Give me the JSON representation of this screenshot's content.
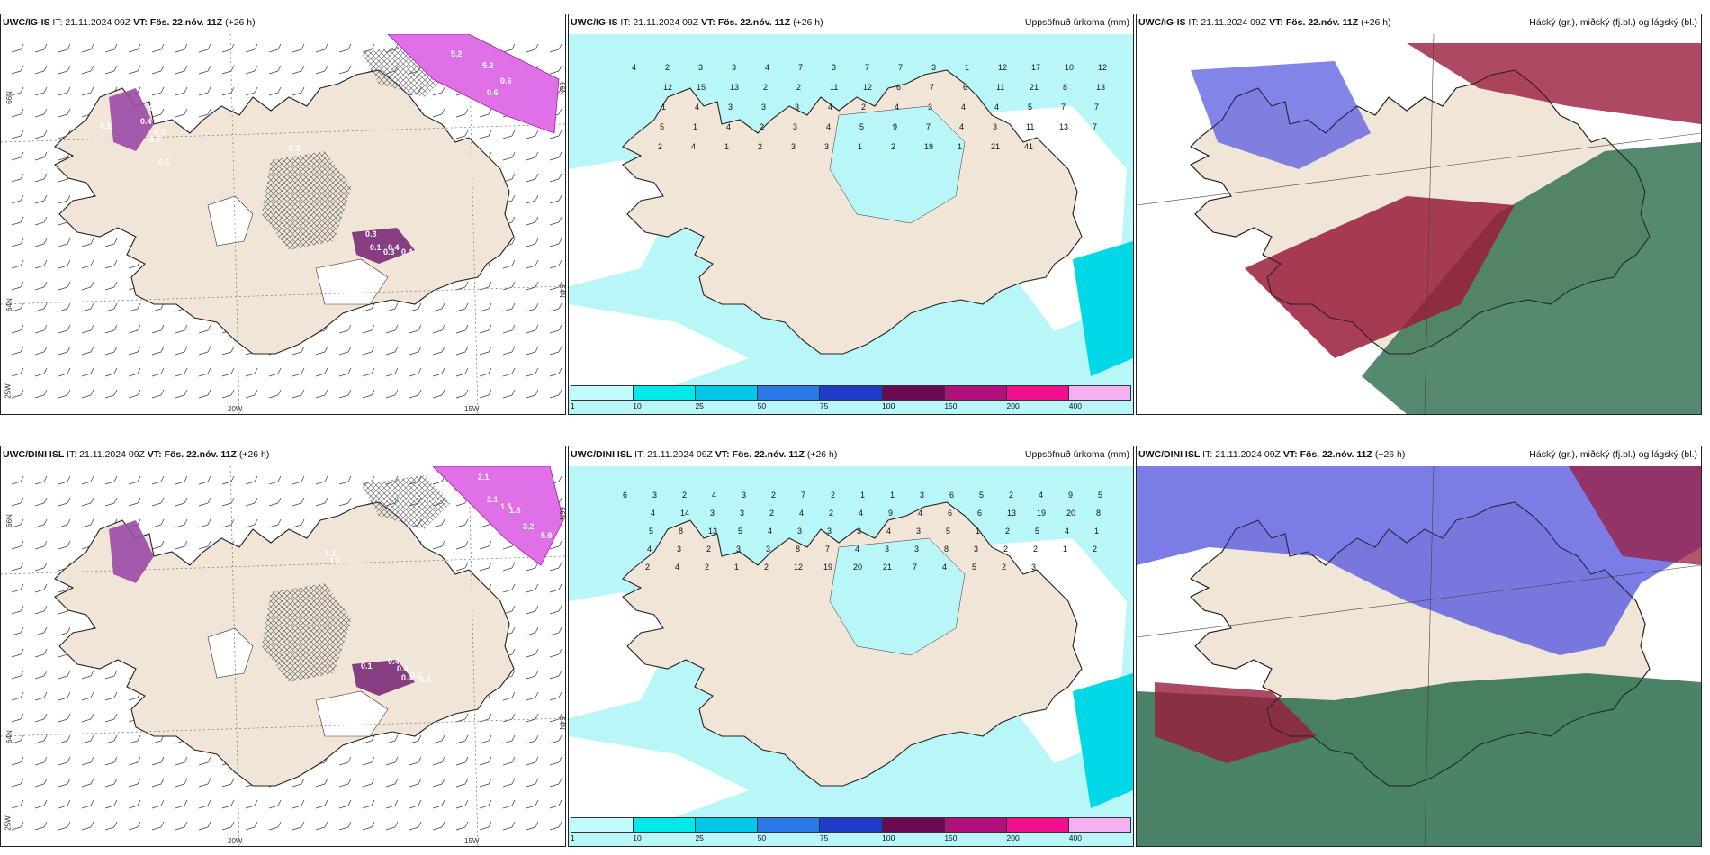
{
  "panels": {
    "r1c1": {
      "model": "UWC/IG-IS",
      "it": "IT: 21.11.2024 09Z",
      "vt_label": "VT:",
      "vt": "Fös. 22.nóv. 11Z",
      "lead": "(+26 h)",
      "right_title": "",
      "axis": {
        "lat_top": "66N",
        "lat_bot": "64N",
        "lon_left": "25W",
        "lon_mid": "20W",
        "lon_right": "15W",
        "lat_right_top": "66N",
        "lat_right_bot": "64N"
      },
      "values": [
        "5.2",
        "5.2",
        "0.6",
        "0.6",
        "0.3",
        "0.5",
        "0.4",
        "0.5",
        "0.5",
        "0.6",
        "0.1",
        "0.3",
        "0.1",
        "0.3",
        "0.4",
        "0.4"
      ]
    },
    "r1c2": {
      "model": "UWC/IG-IS",
      "it": "IT: 21.11.2024 09Z",
      "vt_label": "VT:",
      "vt": "Fös. 22.nóv. 11Z",
      "lead": "(+26 h)",
      "right_title": "Uppsöfnuð úrkoma (mm)",
      "values": [
        "4",
        "2",
        "3",
        "3",
        "4",
        "7",
        "3",
        "7",
        "7",
        "3",
        "1",
        "12",
        "17",
        "10",
        "12",
        "12",
        "15",
        "13",
        "2",
        "2",
        "11",
        "12",
        "6",
        "7",
        "6",
        "11",
        "21",
        "8",
        "13",
        "1",
        "4",
        "3",
        "3",
        "3",
        "4",
        "2",
        "4",
        "3",
        "4",
        "4",
        "5",
        "7",
        "7",
        "5",
        "1",
        "4",
        "2",
        "3",
        "4",
        "5",
        "9",
        "7",
        "4",
        "3",
        "11",
        "13",
        "7",
        "2",
        "4",
        "1",
        "2",
        "3",
        "3",
        "1",
        "2",
        "19",
        "1",
        "21",
        "41"
      ]
    },
    "r1c3": {
      "model": "UWC/IG-IS",
      "it": "IT: 21.11.2024 09Z",
      "vt_label": "VT:",
      "vt": "Fös. 22.nóv. 11Z",
      "lead": "(+26 h)",
      "right_title": "Háský (gr.), miðský (fj.bl.) og lágský (bl.)"
    },
    "r2c1": {
      "model": "UWC/DINI ISL",
      "it": "IT: 21.11.2024 09Z",
      "vt_label": "VT:",
      "vt": "Fös. 22.nóv. 11Z",
      "lead": "(+26 h)",
      "right_title": "",
      "axis": {
        "lat_top": "66N",
        "lat_bot": "64N",
        "lon_left": "25W",
        "lon_mid": "20W",
        "lon_right": "15W",
        "lat_right_top": "66N",
        "lat_right_bot": "64N"
      },
      "values": [
        "2.1",
        "2.1",
        "1.5",
        "1.8",
        "3.2",
        "5.9",
        "1.1",
        "1.1",
        "0.4",
        "0.4",
        "0.6",
        "0.4",
        "0.1",
        "0.4"
      ]
    },
    "r2c2": {
      "model": "UWC/DINI ISL",
      "it": "IT: 21.11.2024 09Z",
      "vt_label": "VT:",
      "vt": "Fös. 22.nóv. 11Z",
      "lead": "(+26 h)",
      "right_title": "Uppsöfnuð úrkoma (mm)",
      "values": [
        "6",
        "3",
        "2",
        "4",
        "3",
        "2",
        "7",
        "2",
        "1",
        "1",
        "3",
        "6",
        "5",
        "2",
        "4",
        "9",
        "5",
        "4",
        "14",
        "3",
        "3",
        "2",
        "4",
        "2",
        "4",
        "9",
        "4",
        "6",
        "6",
        "13",
        "19",
        "20",
        "8",
        "5",
        "8",
        "13",
        "5",
        "4",
        "3",
        "3",
        "3",
        "4",
        "3",
        "5",
        "1",
        "2",
        "5",
        "4",
        "1",
        "4",
        "3",
        "2",
        "3",
        "3",
        "8",
        "7",
        "4",
        "3",
        "3",
        "8",
        "3",
        "2",
        "2",
        "1",
        "2",
        "2",
        "4",
        "2",
        "1",
        "2",
        "12",
        "19",
        "20",
        "21",
        "7",
        "4",
        "5",
        "2",
        "3"
      ]
    },
    "r2c3": {
      "model": "UWC/DINI ISL",
      "it": "IT: 21.11.2024 09Z",
      "vt_label": "VT:",
      "vt": "Fös. 22.nóv. 11Z",
      "lead": "(+26 h)",
      "right_title": "Háský (gr.), miðský (fj.bl.) og lágský (bl.)"
    }
  },
  "legend": {
    "ticks": [
      "1",
      "10",
      "25",
      "50",
      "75",
      "100",
      "150",
      "200",
      "400"
    ],
    "colors": [
      "#c3fafb",
      "#00e8ea",
      "#00c8e6",
      "#2b78e8",
      "#1e3cc8",
      "#6a0a55",
      "#b0107a",
      "#f0108c",
      "#f4b0f0"
    ]
  },
  "colors": {
    "land": "#f1e5d8",
    "sea": "#ffffff",
    "precip_light": "#b9f6f8",
    "snow": "#e8e8e8",
    "high_cloud": "#2a6d4c",
    "mid_cloud": "#5a5be0",
    "low_cloud": "#9a1c3c"
  }
}
